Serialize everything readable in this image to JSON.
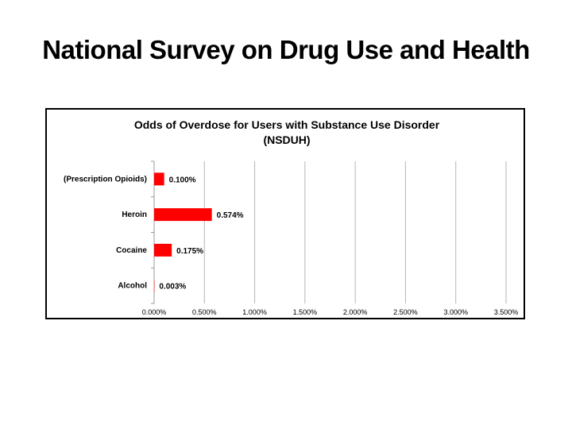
{
  "slide": {
    "title": "National Survey on Drug Use and Health"
  },
  "chart_data": {
    "type": "bar",
    "orientation": "horizontal",
    "title": "Odds of Overdose for Users with Substance Use Disorder (NSDUH)",
    "title_lines": [
      "Odds of Overdose for Users with Substance Use Disorder",
      "(NSDUH)"
    ],
    "categories": [
      "(Prescription Opioids)",
      "Heroin",
      "Cocaine",
      "Alcohol"
    ],
    "values": [
      0.1,
      0.574,
      0.175,
      0.003
    ],
    "value_labels": [
      "0.100%",
      "0.574%",
      "0.175%",
      "0.003%"
    ],
    "xlim": [
      0,
      3.5
    ],
    "xticks": [
      "0.000%",
      "0.500%",
      "1.000%",
      "1.500%",
      "2.000%",
      "2.500%",
      "3.000%",
      "3.500%"
    ],
    "xlabel": "",
    "ylabel": "",
    "grid": "vertical",
    "legend": "none",
    "bar_color": "#ff0000"
  }
}
